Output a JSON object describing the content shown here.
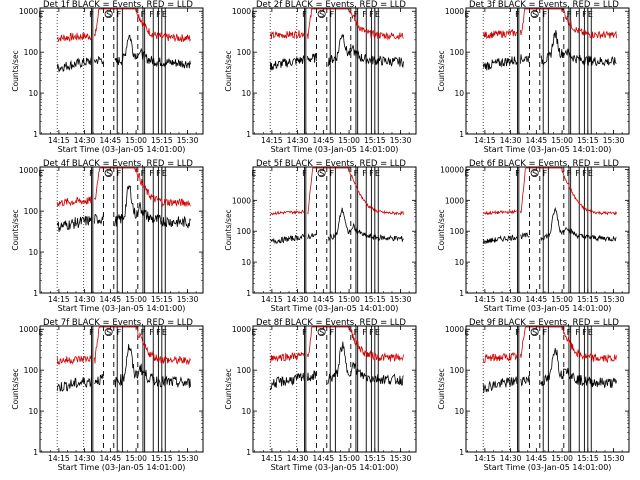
{
  "chart_data": [
    {
      "type": "line",
      "title": "Det 1f BLACK = Events, RED = LLD",
      "xlabel": "Start Time (03-Jan-05 14:01:00)",
      "ylabel": "Counts/sec",
      "x_ticks": [
        "14:15",
        "14:30",
        "14:45",
        "15:00",
        "15:15",
        "15:30"
      ],
      "y_ticks": [
        "1",
        "10",
        "100",
        "1000"
      ],
      "xlim": [
        "14:04",
        "15:39"
      ],
      "ylim": [
        1,
        1200
      ],
      "y_scale": "log",
      "markers": [
        "E",
        "F",
        "S",
        "F",
        "F",
        "F",
        "F",
        "E"
      ],
      "series": [
        {
          "color": "#d00000",
          "baseline": 220,
          "peak": 1100,
          "noise": 0.1
        },
        {
          "color": "#000000",
          "baseline": 55,
          "peak": 180,
          "noise": 0.12
        }
      ]
    },
    {
      "type": "line",
      "title": "Det 2f BLACK = Events, RED = LLD",
      "xlabel": "Start Time (03-Jan-05 14:01:00)",
      "ylabel": "Counts/sec",
      "x_ticks": [
        "14:15",
        "14:30",
        "14:45",
        "15:00",
        "15:15",
        "15:30"
      ],
      "y_ticks": [
        "1",
        "10",
        "100",
        "1000"
      ],
      "xlim": [
        "14:04",
        "15:39"
      ],
      "ylim": [
        1,
        1200
      ],
      "y_scale": "log",
      "markers": [
        "E",
        "F",
        "S",
        "F",
        "F",
        "F",
        "F",
        "E"
      ],
      "series": [
        {
          "color": "#d00000",
          "baseline": 250,
          "peak": 1150,
          "noise": 0.09
        },
        {
          "color": "#000000",
          "baseline": 60,
          "peak": 200,
          "noise": 0.12
        }
      ]
    },
    {
      "type": "line",
      "title": "Det 3f BLACK = Events, RED = LLD",
      "xlabel": "Start Time (03-Jan-05 14:01:00)",
      "ylabel": "Counts/sec",
      "x_ticks": [
        "14:15",
        "14:30",
        "14:45",
        "15:00",
        "15:15",
        "15:30"
      ],
      "y_ticks": [
        "1",
        "10",
        "100",
        "1000"
      ],
      "xlim": [
        "14:04",
        "15:39"
      ],
      "ylim": [
        1,
        1200
      ],
      "y_scale": "log",
      "markers": [
        "E",
        "F",
        "S",
        "F",
        "F",
        "F",
        "F",
        "E"
      ],
      "series": [
        {
          "color": "#d00000",
          "baseline": 260,
          "peak": 1150,
          "noise": 0.09
        },
        {
          "color": "#000000",
          "baseline": 60,
          "peak": 190,
          "noise": 0.12
        }
      ]
    },
    {
      "type": "line",
      "title": "Det 4f BLACK = Events, RED = LLD",
      "xlabel": "Start Time (03-Jan-05 14:01:00)",
      "ylabel": "Counts/sec",
      "x_ticks": [
        "14:15",
        "14:30",
        "14:45",
        "15:00",
        "15:15",
        "15:30"
      ],
      "y_ticks": [
        "1",
        "10",
        "100",
        "1000"
      ],
      "xlim": [
        "14:04",
        "15:39"
      ],
      "ylim": [
        1,
        1200
      ],
      "y_scale": "log",
      "markers": [
        "E",
        "F",
        "S",
        "F",
        "F",
        "F",
        "F",
        "E"
      ],
      "series": [
        {
          "color": "#d00000",
          "baseline": 160,
          "peak": 1100,
          "noise": 0.1
        },
        {
          "color": "#000000",
          "baseline": 55,
          "peak": 300,
          "noise": 0.14
        }
      ]
    },
    {
      "type": "line",
      "title": "Det 5f BLACK = Events, RED = LLD",
      "xlabel": "Start Time (03-Jan-05 14:01:00)",
      "ylabel": "Counts/sec",
      "x_ticks": [
        "14:15",
        "14:30",
        "14:45",
        "15:00",
        "15:15",
        "15:30"
      ],
      "y_ticks": [
        "1",
        "10",
        "100",
        "1000"
      ],
      "xlim": [
        "14:04",
        "15:39"
      ],
      "ylim": [
        1,
        12000
      ],
      "y_scale": "log",
      "markers": [
        "E",
        "F",
        "S",
        "F",
        "F",
        "F",
        "F",
        "E"
      ],
      "series": [
        {
          "color": "#d00000",
          "baseline": 380,
          "peak": 11000,
          "noise": 0.05
        },
        {
          "color": "#000000",
          "baseline": 60,
          "peak": 400,
          "noise": 0.09
        }
      ]
    },
    {
      "type": "line",
      "title": "Det 6f BLACK = Events, RED = LLD",
      "xlabel": "Start Time (03-Jan-05 14:01:00)",
      "ylabel": "Counts/sec",
      "x_ticks": [
        "14:15",
        "14:30",
        "14:45",
        "15:00",
        "15:15",
        "15:30"
      ],
      "y_ticks": [
        "1",
        "10",
        "100",
        "1000",
        "10000"
      ],
      "xlim": [
        "14:04",
        "15:39"
      ],
      "ylim": [
        1,
        12000
      ],
      "y_scale": "log",
      "markers": [
        "E",
        "F",
        "S",
        "F",
        "F",
        "F",
        "F",
        "E"
      ],
      "series": [
        {
          "color": "#d00000",
          "baseline": 380,
          "peak": 11000,
          "noise": 0.05
        },
        {
          "color": "#000000",
          "baseline": 60,
          "peak": 400,
          "noise": 0.09
        }
      ]
    },
    {
      "type": "line",
      "title": "Det 7f BLACK = Events, RED = LLD",
      "xlabel": "Start Time (03-Jan-05 14:01:00)",
      "ylabel": "Counts/sec",
      "x_ticks": [
        "14:15",
        "14:30",
        "14:45",
        "15:00",
        "15:15",
        "15:30"
      ],
      "y_ticks": [
        "1",
        "10",
        "100",
        "1000"
      ],
      "xlim": [
        "14:04",
        "15:39"
      ],
      "ylim": [
        1,
        1200
      ],
      "y_scale": "log",
      "markers": [
        "E",
        "F",
        "S",
        "F",
        "F",
        "F",
        "F",
        "E"
      ],
      "series": [
        {
          "color": "#d00000",
          "baseline": 170,
          "peak": 1100,
          "noise": 0.1
        },
        {
          "color": "#000000",
          "baseline": 50,
          "peak": 300,
          "noise": 0.14
        }
      ]
    },
    {
      "type": "line",
      "title": "Det 8f BLACK = Events, RED = LLD",
      "xlabel": "Start Time (03-Jan-05 14:01:00)",
      "ylabel": "Counts/sec",
      "x_ticks": [
        "14:15",
        "14:30",
        "14:45",
        "15:00",
        "15:15",
        "15:30"
      ],
      "y_ticks": [
        "1",
        "10",
        "100",
        "1000"
      ],
      "xlim": [
        "14:04",
        "15:39"
      ],
      "ylim": [
        1,
        1200
      ],
      "y_scale": "log",
      "markers": [
        "E",
        "F",
        "S",
        "F",
        "F",
        "F",
        "F",
        "E"
      ],
      "series": [
        {
          "color": "#d00000",
          "baseline": 200,
          "peak": 1150,
          "noise": 0.1
        },
        {
          "color": "#000000",
          "baseline": 60,
          "peak": 300,
          "noise": 0.13
        }
      ]
    },
    {
      "type": "line",
      "title": "Det 9f BLACK = Events, RED = LLD",
      "xlabel": "Start Time (03-Jan-05 14:01:00)",
      "ylabel": "Counts/sec",
      "x_ticks": [
        "14:15",
        "14:30",
        "14:45",
        "15:00",
        "15:15",
        "15:30"
      ],
      "y_ticks": [
        "1",
        "10",
        "100",
        "1000"
      ],
      "xlim": [
        "14:04",
        "15:39"
      ],
      "ylim": [
        1,
        1200
      ],
      "y_scale": "log",
      "markers": [
        "E",
        "F",
        "S",
        "F",
        "F",
        "F",
        "F",
        "E"
      ],
      "series": [
        {
          "color": "#d00000",
          "baseline": 190,
          "peak": 1150,
          "noise": 0.1
        },
        {
          "color": "#000000",
          "baseline": 50,
          "peak": 280,
          "noise": 0.13
        }
      ]
    }
  ]
}
